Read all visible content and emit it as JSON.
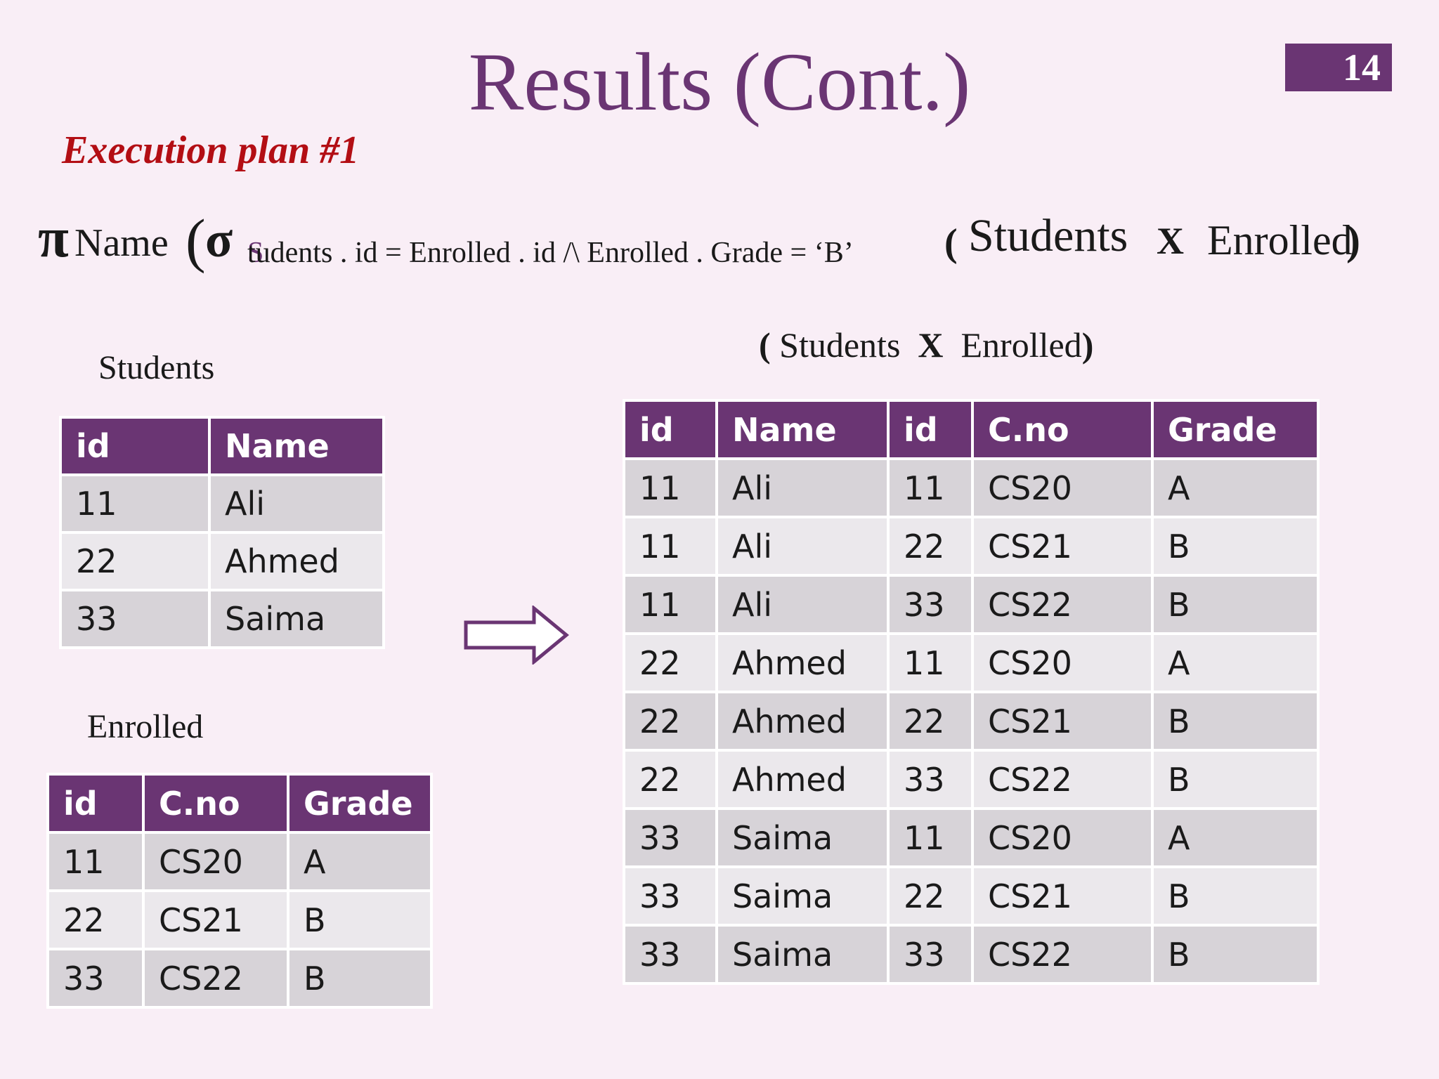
{
  "slide": {
    "title": "Results (Cont.)",
    "page_number": "14",
    "subtitle": "Execution plan #1"
  },
  "formula": {
    "pi": "π",
    "projection": "Name",
    "open_paren": "(",
    "sigma": "σ",
    "condition_first_letter": "S",
    "condition_rest": "tudents . id = Enrolled . id  /\\  Enrolled . Grade = ‘B’",
    "inner_open": "(",
    "students": "Students",
    "cross": "X",
    "enrolled": "Enrolled",
    "close": ")"
  },
  "students": {
    "label": "Students",
    "columns": [
      "id",
      "Name"
    ],
    "rows": [
      [
        "11",
        "Ali"
      ],
      [
        "22",
        "Ahmed"
      ],
      [
        "33",
        "Saima"
      ]
    ]
  },
  "enrolled": {
    "label": "Enrolled",
    "columns": [
      "id",
      "C.no",
      "Grade"
    ],
    "rows": [
      [
        "11",
        "CS20",
        "A"
      ],
      [
        "22",
        "CS21",
        "B"
      ],
      [
        "33",
        "CS22",
        "B"
      ]
    ]
  },
  "product": {
    "label_open": "(",
    "label_students": "Students",
    "label_cross": "X",
    "label_enrolled": "Enrolled",
    "label_close": ")",
    "columns": [
      "id",
      "Name",
      "id",
      "C.no",
      "Grade"
    ],
    "rows": [
      [
        "11",
        "Ali",
        "11",
        "CS20",
        "A"
      ],
      [
        "11",
        "Ali",
        "22",
        "CS21",
        "B"
      ],
      [
        "11",
        "Ali",
        "33",
        "CS22",
        "B"
      ],
      [
        "22",
        "Ahmed",
        "11",
        "CS20",
        "A"
      ],
      [
        "22",
        "Ahmed",
        "22",
        "CS21",
        "B"
      ],
      [
        "22",
        "Ahmed",
        "33",
        "CS22",
        "B"
      ],
      [
        "33",
        "Saima",
        "11",
        "CS20",
        "A"
      ],
      [
        "33",
        "Saima",
        "22",
        "CS21",
        "B"
      ],
      [
        "33",
        "Saima",
        "33",
        "CS22",
        "B"
      ]
    ]
  },
  "colors": {
    "accent": "#6a3573",
    "subtitle": "#b30e14",
    "background": "#f9eef6"
  },
  "icons": {
    "arrow": "right-arrow-icon"
  }
}
